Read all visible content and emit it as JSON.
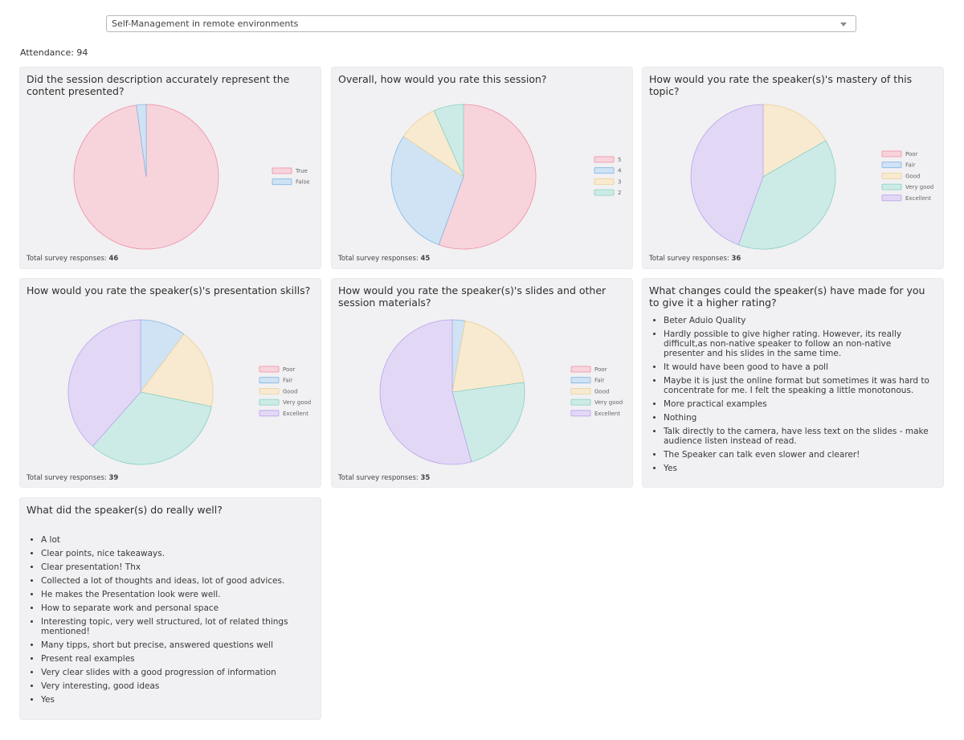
{
  "session_select": {
    "value": "Self-Management in remote environments",
    "icon": "chevron-down-icon"
  },
  "attendance": {
    "label": "Attendance:",
    "value": "94"
  },
  "total_label": "Total survey responses:",
  "charts": [
    {
      "title": "Did the session description accurately represent the content presented?",
      "total": "46",
      "chart_data": {
        "type": "pie",
        "categories": [
          "True",
          "False"
        ],
        "values": [
          45,
          1
        ],
        "colors": [
          "#f7d4dc",
          "#cfe3f5"
        ],
        "strokes": [
          "#ef8ca4",
          "#84b6e4"
        ],
        "start_angle_deg": 0,
        "legend_position": "right"
      }
    },
    {
      "title": "Overall, how would you rate this session?",
      "total": "45",
      "chart_data": {
        "type": "pie",
        "categories": [
          "5",
          "4",
          "3",
          "2"
        ],
        "values": [
          25,
          13,
          4,
          3
        ],
        "colors": [
          "#f7d4dc",
          "#cfe3f5",
          "#f8ead0",
          "#cdebe6"
        ],
        "strokes": [
          "#ef8ca4",
          "#84b6e4",
          "#ecd096",
          "#86cfc4"
        ],
        "start_angle_deg": 0,
        "legend_position": "right"
      }
    },
    {
      "title": "How would you rate the speaker(s)'s mastery of this topic?",
      "total": "36",
      "chart_data": {
        "type": "pie",
        "categories": [
          "Poor",
          "Fair",
          "Good",
          "Very good",
          "Excellent"
        ],
        "values": [
          0,
          0,
          6,
          14,
          16
        ],
        "colors": [
          "#f7d4dc",
          "#cfe3f5",
          "#f8ead0",
          "#cdebe6",
          "#e2d8f6"
        ],
        "strokes": [
          "#ef8ca4",
          "#84b6e4",
          "#ecd096",
          "#86cfc4",
          "#b9a3ec"
        ],
        "start_angle_deg": 0,
        "legend_position": "right"
      }
    },
    {
      "title": "How would you rate the speaker(s)'s presentation skills?",
      "total": "39",
      "chart_data": {
        "type": "pie",
        "categories": [
          "Poor",
          "Fair",
          "Good",
          "Very good",
          "Excellent"
        ],
        "values": [
          0,
          4,
          7,
          13,
          15
        ],
        "colors": [
          "#f7d4dc",
          "#cfe3f5",
          "#f8ead0",
          "#cdebe6",
          "#e2d8f6"
        ],
        "strokes": [
          "#ef8ca4",
          "#84b6e4",
          "#ecd096",
          "#86cfc4",
          "#b9a3ec"
        ],
        "start_angle_deg": 0,
        "legend_position": "right"
      }
    },
    {
      "title": "How would you rate the speaker(s)'s slides and other session materials?",
      "total": "35",
      "chart_data": {
        "type": "pie",
        "categories": [
          "Poor",
          "Fair",
          "Good",
          "Very good",
          "Excellent"
        ],
        "values": [
          0,
          1,
          7,
          8,
          19
        ],
        "colors": [
          "#f7d4dc",
          "#cfe3f5",
          "#f8ead0",
          "#cdebe6",
          "#e2d8f6"
        ],
        "strokes": [
          "#ef8ca4",
          "#84b6e4",
          "#ecd096",
          "#86cfc4",
          "#b9a3ec"
        ],
        "start_angle_deg": 0,
        "legend_position": "right"
      }
    }
  ],
  "changes": {
    "title": "What changes could the speaker(s) have made for you to give it a higher rating?",
    "answers": [
      "Beter Aduio Quality",
      "Hardly possible to give higher rating. However, its really difficult,as non-native speaker to follow an non-native presenter and his slides in the same time.",
      "It would have been good to have a poll",
      "Maybe it is just the online format but sometimes it was hard to concentrate for me. I felt the speaking a little monotonous.",
      "More practical examples",
      "Nothing",
      "Talk directly to the camera, have less text on the slides - make audience listen instead of read.",
      "The Speaker can talk even slower and clearer!",
      "Yes"
    ]
  },
  "well": {
    "title": "What did the speaker(s) do really well?",
    "answers": [
      "A lot",
      "Clear points, nice takeaways.",
      "Clear presentation! Thx",
      "Collected a lot of thoughts and ideas, lot of good advices.",
      "He makes the Presentation look were well.",
      "How to separate work and personal space",
      "Interesting topic, very well structured, lot of related things mentioned!",
      "Many tipps, short but precise, answered questions well",
      "Present real examples",
      "Very clear slides with a good progression of information",
      "Very interesting, good ideas",
      "Yes"
    ]
  }
}
